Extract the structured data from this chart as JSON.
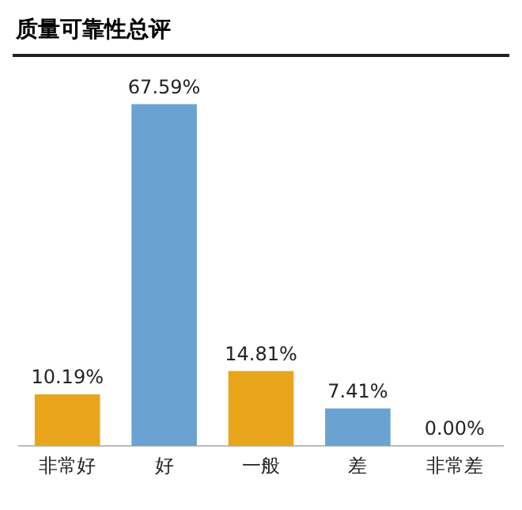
{
  "chart_data": {
    "type": "bar",
    "title": "质量可靠性总评",
    "categories": [
      "非常好",
      "好",
      "一般",
      "差",
      "非常差"
    ],
    "values": [
      10.19,
      67.59,
      14.81,
      7.41,
      0.0
    ],
    "colors": [
      "#e9a51c",
      "#6aa3d2",
      "#e9a51c",
      "#6aa3d2",
      "#6aa3d2"
    ],
    "value_labels": [
      "10.19%",
      "67.59%",
      "14.81%",
      "7.41%",
      "0.00%"
    ],
    "legend": false,
    "grid": false
  }
}
